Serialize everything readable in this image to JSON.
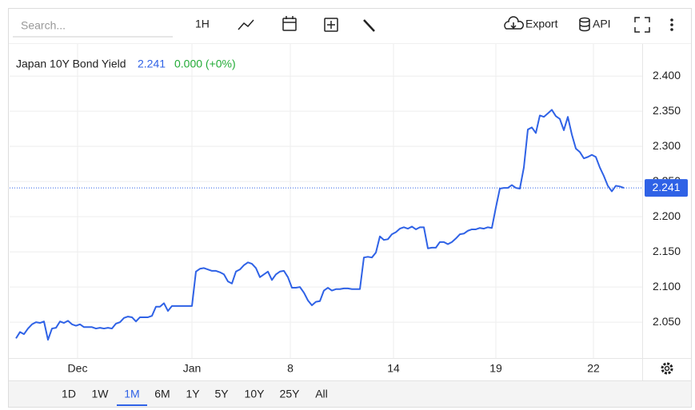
{
  "toolbar": {
    "search_placeholder": "Search...",
    "interval": "1H",
    "buttons": [
      "Export",
      "API"
    ]
  },
  "chart_data": {
    "type": "line",
    "series": [
      {
        "name": "Japan 10Y Bond Yield",
        "color": "#2f62e6",
        "values": [
          2.027,
          2.036,
          2.033,
          2.041,
          2.047,
          2.05,
          2.049,
          2.051,
          2.025,
          2.041,
          2.042,
          2.051,
          2.049,
          2.052,
          2.047,
          2.045,
          2.047,
          2.043,
          2.043,
          2.043,
          2.041,
          2.042,
          2.041,
          2.042,
          2.041,
          2.048,
          2.05,
          2.056,
          2.058,
          2.057,
          2.051,
          2.057,
          2.057,
          2.057,
          2.059,
          2.072,
          2.072,
          2.077,
          2.066,
          2.073,
          2.073,
          2.073,
          2.073,
          2.073,
          2.073,
          2.122,
          2.126,
          2.127,
          2.125,
          2.123,
          2.123,
          2.121,
          2.118,
          2.108,
          2.105,
          2.122,
          2.125,
          2.131,
          2.135,
          2.133,
          2.127,
          2.114,
          2.118,
          2.122,
          2.11,
          2.118,
          2.122,
          2.123,
          2.114,
          2.099,
          2.099,
          2.1,
          2.092,
          2.081,
          2.074,
          2.079,
          2.08,
          2.095,
          2.099,
          2.095,
          2.097,
          2.097,
          2.098,
          2.098,
          2.097,
          2.097,
          2.097,
          2.142,
          2.143,
          2.142,
          2.149,
          2.172,
          2.167,
          2.168,
          2.175,
          2.178,
          2.183,
          2.185,
          2.183,
          2.186,
          2.182,
          2.185,
          2.185,
          2.155,
          2.156,
          2.156,
          2.164,
          2.164,
          2.161,
          2.164,
          2.169,
          2.175,
          2.176,
          2.18,
          2.182,
          2.182,
          2.184,
          2.183,
          2.185,
          2.184,
          2.213,
          2.24,
          2.241,
          2.241,
          2.245,
          2.241,
          2.24,
          2.27,
          2.324,
          2.327,
          2.319,
          2.344,
          2.342,
          2.347,
          2.352,
          2.343,
          2.339,
          2.323,
          2.342,
          2.317,
          2.297,
          2.292,
          2.283,
          2.285,
          2.288,
          2.285,
          2.27,
          2.258,
          2.244,
          2.236,
          2.244,
          2.243,
          2.241
        ]
      }
    ],
    "last_value": 2.241,
    "last_value_color": "#2f62e6",
    "change": "0.000 (+0%)",
    "change_color": "#22ab36",
    "xlim": [
      -1.6,
      156.6
    ],
    "xticks": [
      {
        "value": 15.4,
        "label": "Dec"
      },
      {
        "value": 44,
        "label": "Jan"
      },
      {
        "value": 68.6,
        "label": "8"
      },
      {
        "value": 94.4,
        "label": "14"
      },
      {
        "value": 120,
        "label": "19"
      },
      {
        "value": 144.4,
        "label": "22"
      }
    ],
    "ylim": [
      1.999,
      2.44
    ],
    "yticks": [
      {
        "value": 2.05,
        "label": "2.050"
      },
      {
        "value": 2.1,
        "label": "2.100"
      },
      {
        "value": 2.15,
        "label": "2.150"
      },
      {
        "value": 2.2,
        "label": "2.200"
      },
      {
        "value": 2.25,
        "label": "2.250"
      },
      {
        "value": 2.3,
        "label": "2.300"
      },
      {
        "value": 2.35,
        "label": "2.350"
      },
      {
        "value": 2.4,
        "label": "2.400"
      }
    ],
    "grid": true,
    "y_axis_side": "right",
    "ranges": [
      "1D",
      "1W",
      "1M",
      "6M",
      "1Y",
      "5Y",
      "10Y",
      "25Y",
      "All"
    ],
    "active_range_index": 2
  }
}
